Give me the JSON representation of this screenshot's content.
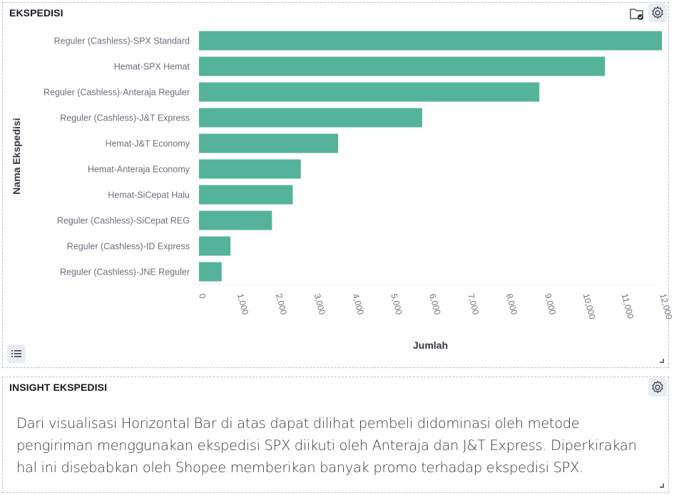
{
  "chart_panel": {
    "title": "EKSPEDISI"
  },
  "insight_panel": {
    "title": "INSIGHT EKSPEDISI",
    "text": "Dari visualisasi Horizontal Bar di atas dapat dilihat pembeli didominasi oleh metode pengiriman menggunakan ekspedisi SPX diikuti oleh Anteraja dan J&T Express. Diperkirakan hal ini disebabkan oleh Shopee memberikan banyak promo terhadap ekspedisi SPX."
  },
  "icons": {
    "folder": "folder-check-icon",
    "gear": "gear-icon",
    "legend": "list-icon"
  },
  "chart_data": {
    "type": "bar",
    "orientation": "horizontal",
    "title": "",
    "xlabel": "Jumlah",
    "ylabel": "Nama Ekspedisi",
    "categories": [
      "Reguler (Cashless)-SPX Standard",
      "Hemat-SPX Hemat",
      "Reguler (Cashless)-Anteraja Reguler",
      "Reguler (Cashless)-J&T Express",
      "Hemat-J&T Economy",
      "Hemat-Anteraja Economy",
      "Hemat-SiCepat Halu",
      "Reguler (Cashless)-SiCepat REG",
      "Reguler (Cashless)-ID Express",
      "Reguler (Cashless)-JNE Reguler"
    ],
    "values": [
      12050,
      10570,
      8860,
      5810,
      3620,
      2650,
      2440,
      1900,
      820,
      590
    ],
    "xlim": [
      0,
      12050
    ],
    "ticks": [
      "0",
      "1,000",
      "2,000",
      "3,000",
      "4,000",
      "5,000",
      "6,000",
      "7,000",
      "8,000",
      "9,000",
      "10,000",
      "11,000",
      "12,000"
    ],
    "tick_values": [
      0,
      1000,
      2000,
      3000,
      4000,
      5000,
      6000,
      7000,
      8000,
      9000,
      10000,
      11000,
      12000
    ],
    "bar_color": "#54b399",
    "grid": false
  }
}
